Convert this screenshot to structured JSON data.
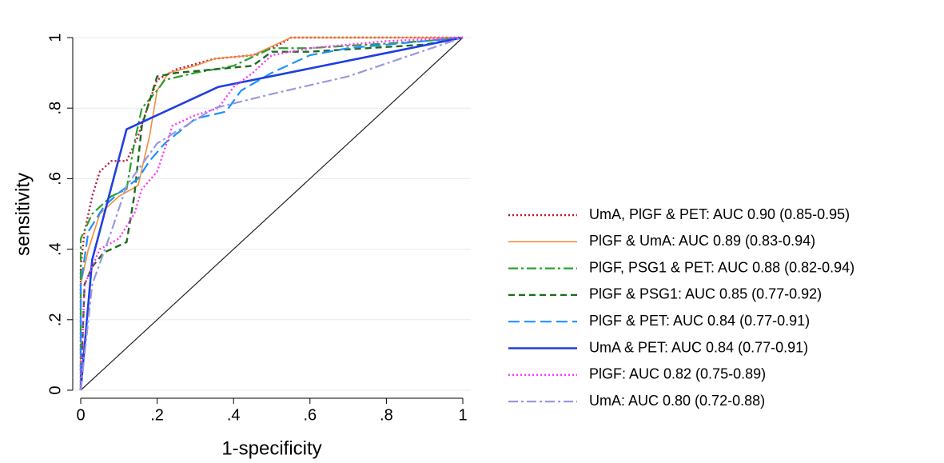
{
  "chart_data": {
    "type": "line",
    "x_label": "1-specificity",
    "y_label": "sensitivity",
    "xlim": [
      0,
      1
    ],
    "ylim": [
      0,
      1
    ],
    "xticks": [
      0,
      {
        "value": 0.2,
        "label": ".2"
      },
      {
        "value": 0.4,
        "label": ".4"
      },
      {
        "value": 0.6,
        "label": ".6"
      },
      {
        "value": 0.8,
        "label": ".8"
      },
      1
    ],
    "yticks": [
      0,
      {
        "value": 0.2,
        "label": ".2"
      },
      {
        "value": 0.4,
        "label": ".4"
      },
      {
        "value": 0.6,
        "label": ".6"
      },
      {
        "value": 0.8,
        "label": ".8"
      },
      1
    ],
    "grid": true,
    "reference_line": true,
    "legend": "right",
    "series": [
      {
        "name": "UmA, PlGF & PET: AUC 0.90 (0.85-0.95)",
        "color": "#c0143c",
        "dash": "dot",
        "x": [
          0,
          0,
          0.01,
          0.03,
          0.05,
          0.08,
          0.12,
          0.15,
          0.18,
          0.2,
          0.25,
          0.35,
          0.45,
          0.52,
          0.55,
          1
        ],
        "y": [
          0,
          0.35,
          0.45,
          0.55,
          0.62,
          0.65,
          0.65,
          0.72,
          0.82,
          0.88,
          0.91,
          0.94,
          0.95,
          0.98,
          1,
          1
        ]
      },
      {
        "name": "PlGF & UmA: AUC 0.89 (0.83-0.94)",
        "color": "#f28c3c",
        "dash": "solid",
        "x": [
          0,
          0,
          0.02,
          0.05,
          0.1,
          0.15,
          0.18,
          0.2,
          0.23,
          0.3,
          0.35,
          0.45,
          0.55,
          1
        ],
        "y": [
          0,
          0.3,
          0.4,
          0.5,
          0.55,
          0.58,
          0.72,
          0.85,
          0.9,
          0.92,
          0.94,
          0.95,
          1,
          1
        ]
      },
      {
        "name": "PlGF, PSG1 & PET: AUC 0.88 (0.82-0.94)",
        "color": "#2ca02c",
        "dash": "dashdot",
        "x": [
          0,
          0,
          0.03,
          0.08,
          0.12,
          0.14,
          0.16,
          0.2,
          0.22,
          0.3,
          0.4,
          0.5,
          0.6,
          0.9,
          1
        ],
        "y": [
          0,
          0.43,
          0.5,
          0.55,
          0.57,
          0.7,
          0.8,
          0.85,
          0.88,
          0.9,
          0.92,
          0.97,
          0.97,
          0.99,
          1
        ]
      },
      {
        "name": "PlGF & PSG1: AUC 0.85 (0.77-0.92)",
        "color": "#1e6b1e",
        "dash": "dash",
        "x": [
          0,
          0.01,
          0.03,
          0.06,
          0.12,
          0.14,
          0.16,
          0.2,
          0.25,
          0.35,
          0.45,
          0.5,
          0.6,
          0.9,
          1
        ],
        "y": [
          0,
          0.3,
          0.35,
          0.39,
          0.42,
          0.55,
          0.75,
          0.89,
          0.9,
          0.91,
          0.92,
          0.96,
          0.96,
          0.98,
          1
        ]
      },
      {
        "name": "PlGF & PET: AUC 0.84 (0.77-0.91)",
        "color": "#1e90ff",
        "dash": "longdash",
        "x": [
          0,
          0,
          0.02,
          0.06,
          0.1,
          0.15,
          0.18,
          0.22,
          0.3,
          0.38,
          0.42,
          0.5,
          0.6,
          0.7,
          1
        ],
        "y": [
          0,
          0.3,
          0.45,
          0.52,
          0.56,
          0.6,
          0.65,
          0.7,
          0.77,
          0.79,
          0.85,
          0.9,
          0.95,
          0.97,
          1
        ]
      },
      {
        "name": "UmA & PET: AUC 0.84 (0.77-0.91)",
        "color": "#1f3fe0",
        "dash": "thick",
        "x": [
          0,
          0.03,
          0.12,
          0.36,
          1
        ],
        "y": [
          0,
          0.37,
          0.74,
          0.86,
          1
        ]
      },
      {
        "name": "PlGF: AUC 0.82 (0.75-0.89)",
        "color": "#ff33ff",
        "dash": "dot",
        "x": [
          0,
          0.01,
          0.05,
          0.1,
          0.14,
          0.16,
          0.2,
          0.24,
          0.3,
          0.36,
          0.4,
          0.45,
          0.5,
          0.6,
          0.8,
          1
        ],
        "y": [
          0,
          0.3,
          0.4,
          0.43,
          0.5,
          0.57,
          0.62,
          0.75,
          0.78,
          0.8,
          0.86,
          0.9,
          0.95,
          0.97,
          0.99,
          1
        ]
      },
      {
        "name": "UmA: AUC 0.80 (0.72-0.88)",
        "color": "#9999dd",
        "dash": "dashdot",
        "x": [
          0,
          0.03,
          0.08,
          0.12,
          0.2,
          0.35,
          0.5,
          0.7,
          1
        ],
        "y": [
          0,
          0.3,
          0.45,
          0.58,
          0.7,
          0.8,
          0.84,
          0.89,
          1
        ]
      }
    ]
  }
}
